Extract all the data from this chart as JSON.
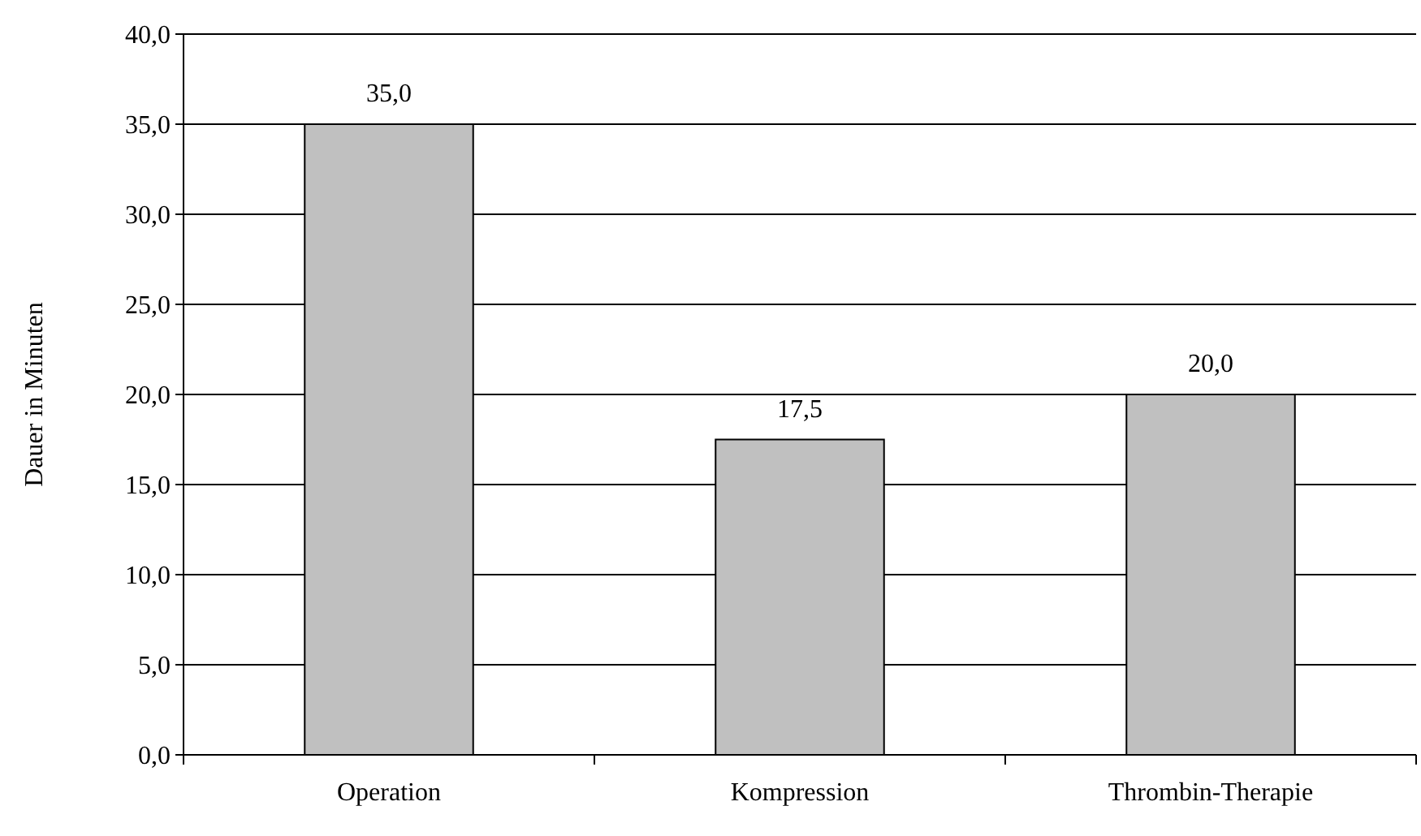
{
  "chart_data": {
    "type": "bar",
    "ylabel": "Dauer in Minuten",
    "categories": [
      "Operation",
      "Kompression",
      "Thrombin-Therapie"
    ],
    "values": [
      35.0,
      17.5,
      20.0
    ],
    "color": "#c0c0c0",
    "value_labels": [
      "35,0",
      "17,5",
      "20,0"
    ],
    "ylim": [
      0,
      40
    ],
    "yticks": [
      {
        "value": 0,
        "label": "0,0"
      },
      {
        "value": 5,
        "label": "5,0"
      },
      {
        "value": 10,
        "label": "10,0"
      },
      {
        "value": 15,
        "label": "15,0"
      },
      {
        "value": 20,
        "label": "20,0"
      },
      {
        "value": 25,
        "label": "25,0"
      },
      {
        "value": 30,
        "label": "30,0"
      },
      {
        "value": 35,
        "label": "35,0"
      },
      {
        "value": 40,
        "label": "40,0"
      }
    ],
    "grid": "y"
  }
}
